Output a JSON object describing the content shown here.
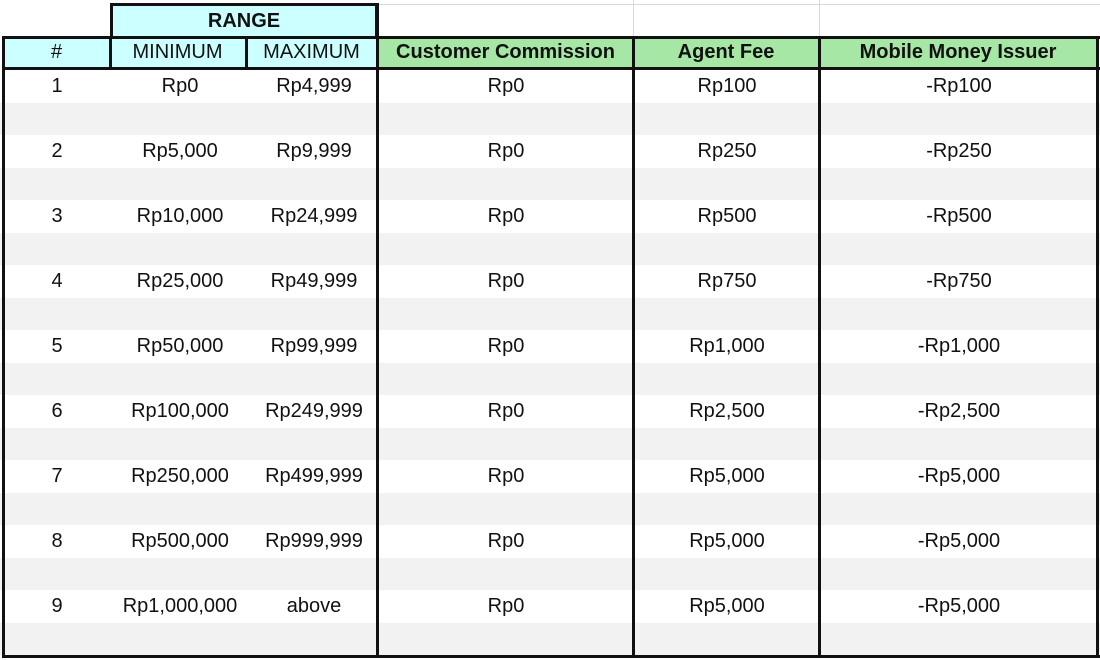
{
  "table": {
    "range_header": "RANGE",
    "headers": {
      "index": "#",
      "minimum": "MINIMUM",
      "maximum": "MAXIMUM",
      "customer_commission": "Customer Commission",
      "agent_fee": "Agent Fee",
      "mobile_money_issuer": "Mobile Money Issuer"
    },
    "colors": {
      "range_header_bg": "#ccffff",
      "column_header_cyan": "#ccffff",
      "column_header_green": "#a7e7a5",
      "band_gray": "#f2f2f2",
      "border": "#111111"
    },
    "rows": [
      {
        "index": "1",
        "minimum": "Rp0",
        "maximum": "Rp4,999",
        "customer_commission": "Rp0",
        "agent_fee": "Rp100",
        "mobile_money_issuer": "-Rp100"
      },
      {
        "index": "2",
        "minimum": "Rp5,000",
        "maximum": "Rp9,999",
        "customer_commission": "Rp0",
        "agent_fee": "Rp250",
        "mobile_money_issuer": "-Rp250"
      },
      {
        "index": "3",
        "minimum": "Rp10,000",
        "maximum": "Rp24,999",
        "customer_commission": "Rp0",
        "agent_fee": "Rp500",
        "mobile_money_issuer": "-Rp500"
      },
      {
        "index": "4",
        "minimum": "Rp25,000",
        "maximum": "Rp49,999",
        "customer_commission": "Rp0",
        "agent_fee": "Rp750",
        "mobile_money_issuer": "-Rp750"
      },
      {
        "index": "5",
        "minimum": "Rp50,000",
        "maximum": "Rp99,999",
        "customer_commission": "Rp0",
        "agent_fee": "Rp1,000",
        "mobile_money_issuer": "-Rp1,000"
      },
      {
        "index": "6",
        "minimum": "Rp100,000",
        "maximum": "Rp249,999",
        "customer_commission": "Rp0",
        "agent_fee": "Rp2,500",
        "mobile_money_issuer": "-Rp2,500"
      },
      {
        "index": "7",
        "minimum": "Rp250,000",
        "maximum": "Rp499,999",
        "customer_commission": "Rp0",
        "agent_fee": "Rp5,000",
        "mobile_money_issuer": "-Rp5,000"
      },
      {
        "index": "8",
        "minimum": "Rp500,000",
        "maximum": "Rp999,999",
        "customer_commission": "Rp0",
        "agent_fee": "Rp5,000",
        "mobile_money_issuer": "-Rp5,000"
      },
      {
        "index": "9",
        "minimum": "Rp1,000,000",
        "maximum": "above",
        "customer_commission": "Rp0",
        "agent_fee": "Rp5,000",
        "mobile_money_issuer": "-Rp5,000"
      }
    ]
  }
}
